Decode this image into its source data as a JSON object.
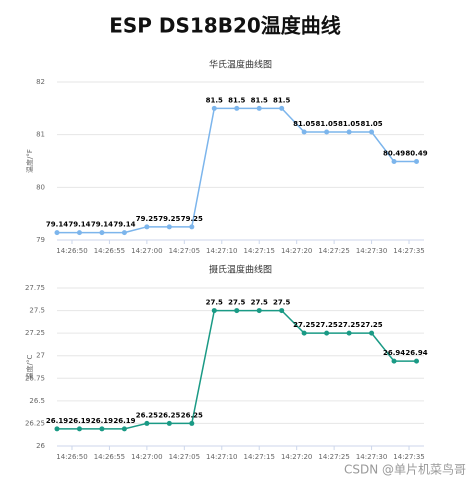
{
  "page_title": "ESP DS18B20温度曲线",
  "watermark": "CSDN @单片机菜鸟哥",
  "chart_data": [
    {
      "type": "line",
      "title": "华氏温度曲线图",
      "y_label": "温度/°F",
      "color": "#7cb5ec",
      "grid": true,
      "x": [
        "14:26:48",
        "14:26:51",
        "14:26:54",
        "14:26:57",
        "14:27:00",
        "14:27:03",
        "14:27:06",
        "14:27:09",
        "14:27:12",
        "14:27:15",
        "14:27:18",
        "14:27:21",
        "14:27:24",
        "14:27:27",
        "14:27:30",
        "14:27:33",
        "14:27:36"
      ],
      "values": [
        79.14,
        79.14,
        79.14,
        79.14,
        79.25,
        79.25,
        79.25,
        81.5,
        81.5,
        81.5,
        81.5,
        81.05,
        81.05,
        81.05,
        81.05,
        80.49,
        80.49
      ],
      "xlim": [
        "14:26:48",
        "14:27:37"
      ],
      "xticks": [
        "14:26:50",
        "14:26:55",
        "14:27:00",
        "14:27:05",
        "14:27:10",
        "14:27:15",
        "14:27:20",
        "14:27:25",
        "14:27:30",
        "14:27:35"
      ],
      "ylim": [
        79,
        82
      ],
      "yticks": [
        79,
        80,
        81,
        82
      ]
    },
    {
      "type": "line",
      "title": "摄氏温度曲线图",
      "y_label": "温度/°C",
      "color": "#1a9a85",
      "grid": true,
      "x": [
        "14:26:48",
        "14:26:51",
        "14:26:54",
        "14:26:57",
        "14:27:00",
        "14:27:03",
        "14:27:06",
        "14:27:09",
        "14:27:12",
        "14:27:15",
        "14:27:18",
        "14:27:21",
        "14:27:24",
        "14:27:27",
        "14:27:30",
        "14:27:33",
        "14:27:36"
      ],
      "values": [
        26.19,
        26.19,
        26.19,
        26.19,
        26.25,
        26.25,
        26.25,
        27.5,
        27.5,
        27.5,
        27.5,
        27.25,
        27.25,
        27.25,
        27.25,
        26.94,
        26.94
      ],
      "xlim": [
        "14:26:48",
        "14:27:37"
      ],
      "xticks": [
        "14:26:50",
        "14:26:55",
        "14:27:00",
        "14:27:05",
        "14:27:10",
        "14:27:15",
        "14:27:20",
        "14:27:25",
        "14:27:30",
        "14:27:35"
      ],
      "ylim": [
        26,
        27.75
      ],
      "yticks": [
        26,
        26.25,
        26.5,
        26.75,
        27,
        27.25,
        27.5,
        27.75
      ]
    }
  ]
}
